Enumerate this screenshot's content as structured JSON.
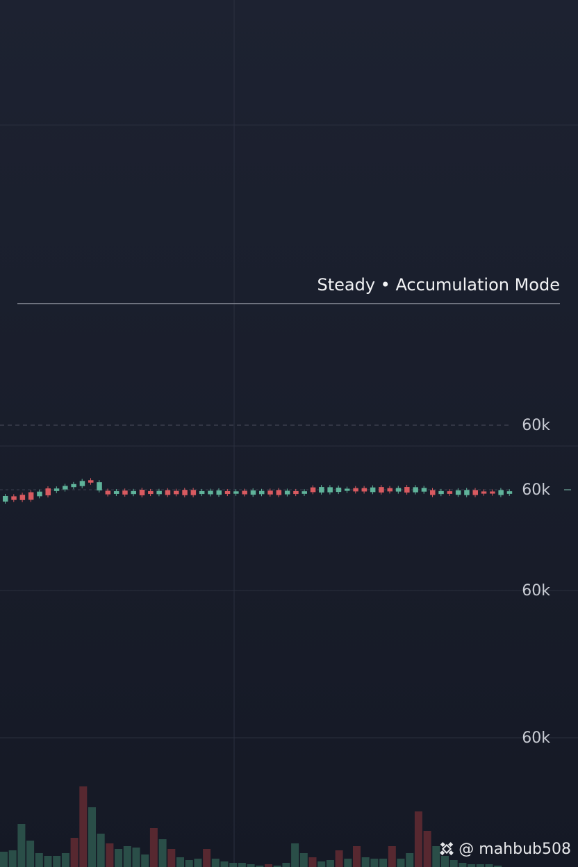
{
  "title": "Steady • Accumulation Mode",
  "price_axis": {
    "labels": [
      "60k",
      "60k",
      "60k",
      "60k"
    ]
  },
  "watermark": "@ mahbub508"
}
